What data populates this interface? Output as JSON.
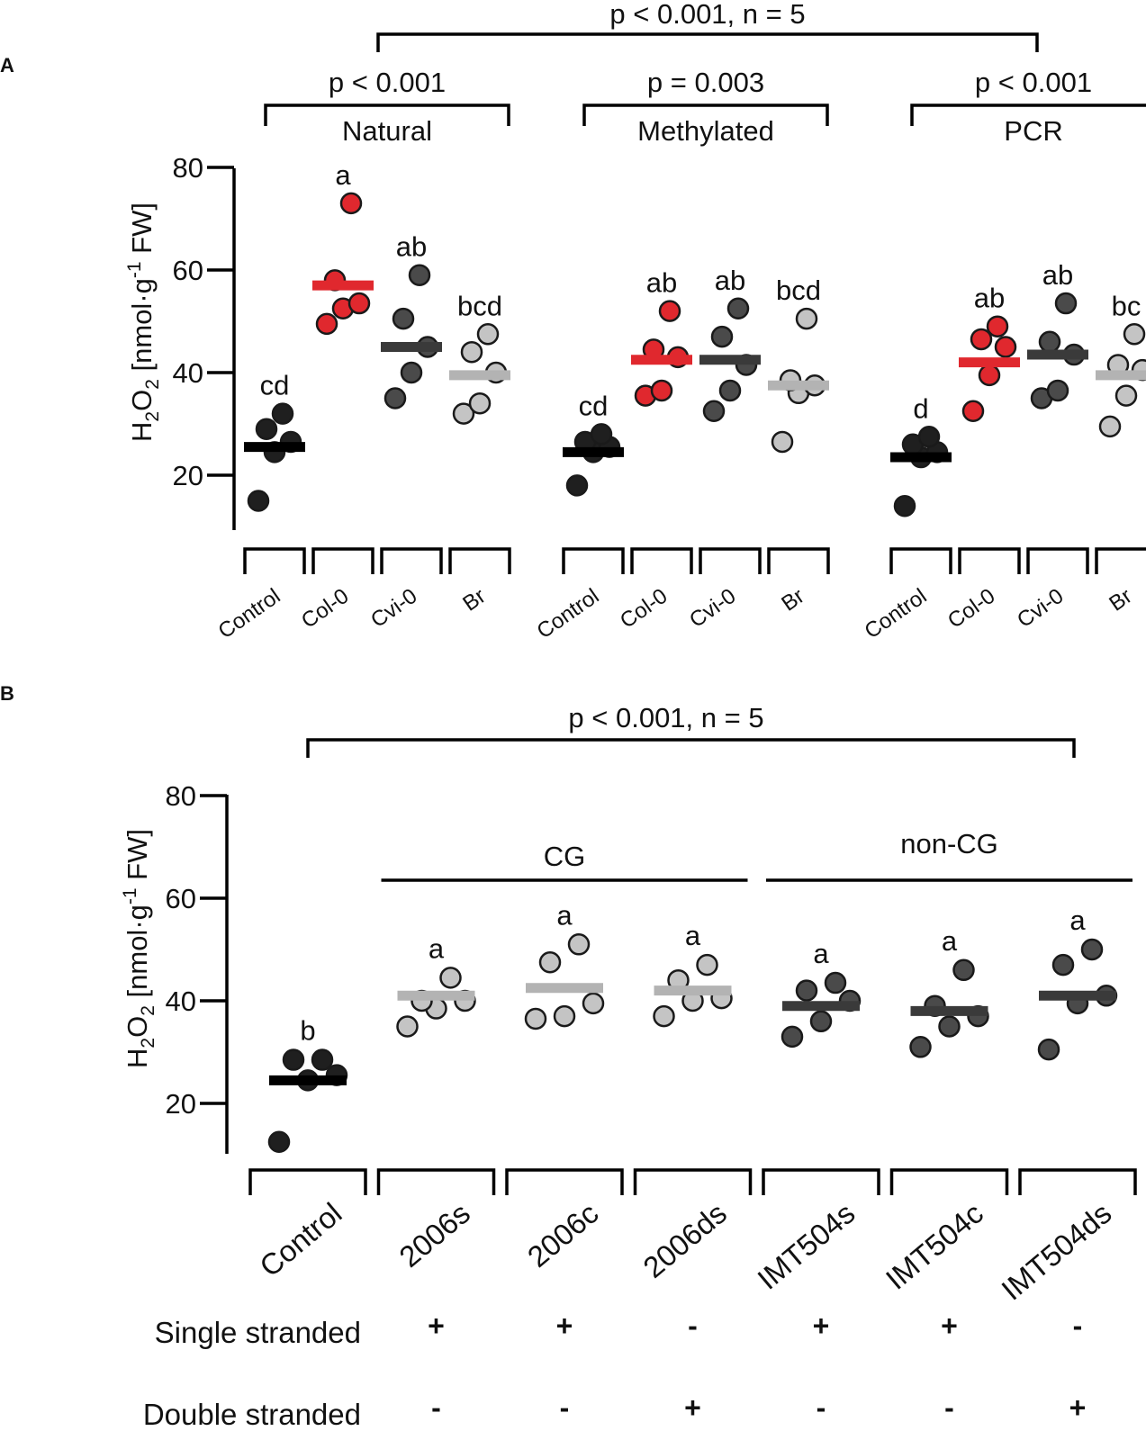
{
  "colors": {
    "black": "#1f1f1f",
    "red": "#e0282e",
    "dark_gray": "#4a4a4a",
    "light_gray": "#c4c4c4",
    "outline": "#1a1a1a"
  },
  "chart_data": [
    {
      "panel": "A",
      "type": "scatter",
      "ylabel": {
        "base": "H",
        "sub1": "2",
        "mid": "O",
        "sub2": "2",
        "rest": " [nmol·g",
        "sup": "-1",
        "end": " FW]"
      },
      "ylim": [
        10,
        80
      ],
      "yticks": [
        20,
        40,
        60,
        80
      ],
      "overall_stat": "p < 0.001, n = 5",
      "groups": [
        {
          "name": "Natural",
          "stat": "p < 0.001",
          "categories": [
            {
              "label": "Control",
              "color": "black",
              "letter": "cd",
              "mean": 25.5,
              "values": [
                15,
                24.5,
                26.5,
                29,
                32
              ]
            },
            {
              "label": "Col-0",
              "color": "red",
              "letter": "a",
              "mean": 57,
              "values": [
                49.5,
                52.5,
                53.5,
                58,
                73
              ]
            },
            {
              "label": "Cvi-0",
              "color": "dark_gray",
              "letter": "ab",
              "mean": 45,
              "values": [
                35,
                40,
                45,
                50.5,
                59
              ]
            },
            {
              "label": "Br",
              "color": "light_gray",
              "letter": "bcd",
              "mean": 39.5,
              "values": [
                32,
                34,
                40,
                44,
                47.5
              ]
            }
          ]
        },
        {
          "name": "Methylated",
          "stat": "p =  0.003",
          "categories": [
            {
              "label": "Control",
              "color": "black",
              "letter": "cd",
              "mean": 24.5,
              "values": [
                18,
                24.5,
                25.5,
                26.5,
                28
              ]
            },
            {
              "label": "Col-0",
              "color": "red",
              "letter": "ab",
              "mean": 42.5,
              "values": [
                35.5,
                36.5,
                43,
                44.5,
                52
              ]
            },
            {
              "label": "Cvi-0",
              "color": "dark_gray",
              "letter": "ab",
              "mean": 42.5,
              "values": [
                32.5,
                36.5,
                41.5,
                47,
                52.5
              ]
            },
            {
              "label": "Br",
              "color": "light_gray",
              "letter": "bcd",
              "mean": 37.5,
              "values": [
                26.5,
                36,
                37.5,
                38.5,
                50.5
              ]
            }
          ]
        },
        {
          "name": "PCR",
          "stat": "p < 0.001",
          "categories": [
            {
              "label": "Control",
              "color": "black",
              "letter": "d",
              "mean": 23.5,
              "values": [
                14,
                23.5,
                24.5,
                26,
                27.5
              ]
            },
            {
              "label": "Col-0",
              "color": "red",
              "letter": "ab",
              "mean": 42,
              "values": [
                32.5,
                39.5,
                45,
                46.5,
                49
              ]
            },
            {
              "label": "Cvi-0",
              "color": "dark_gray",
              "letter": "ab",
              "mean": 43.5,
              "values": [
                35,
                36.5,
                43.5,
                46,
                53.5
              ]
            },
            {
              "label": "Br",
              "color": "light_gray",
              "letter": "bc",
              "mean": 39.5,
              "values": [
                29.5,
                35.5,
                40.5,
                41.5,
                47.5
              ]
            }
          ]
        }
      ]
    },
    {
      "panel": "B",
      "type": "scatter",
      "ylabel": {
        "base": "H",
        "sub1": "2",
        "mid": "O",
        "sub2": "2",
        "rest": " [nmol·g",
        "sup": "-1",
        "end": " FW]"
      },
      "ylim": [
        10,
        80
      ],
      "yticks": [
        20,
        40,
        60,
        80
      ],
      "overall_stat": "p < 0.001, n = 5",
      "brackets": [
        {
          "name": "CG",
          "from": 1,
          "to": 3
        },
        {
          "name": "non-CG",
          "from": 4,
          "to": 6
        }
      ],
      "categories": [
        {
          "label": "Control",
          "color": "black",
          "letter": "b",
          "mean": 24.5,
          "values": [
            12.5,
            24.5,
            25.5,
            28.5,
            28.5
          ]
        },
        {
          "label": "2006s",
          "color": "light_gray",
          "letter": "a",
          "mean": 41,
          "values": [
            35,
            38.5,
            40,
            40,
            44.5
          ]
        },
        {
          "label": "2006c",
          "color": "light_gray",
          "letter": "a",
          "mean": 42.5,
          "values": [
            36.5,
            37,
            39.5,
            47.5,
            51
          ]
        },
        {
          "label": "2006ds",
          "color": "light_gray",
          "letter": "a",
          "mean": 42,
          "values": [
            37,
            40,
            40.5,
            44,
            47
          ]
        },
        {
          "label": "IMT504s",
          "color": "dark_gray",
          "letter": "a",
          "mean": 39,
          "values": [
            33,
            36,
            40,
            42,
            43.5
          ]
        },
        {
          "label": "IMT504c",
          "color": "dark_gray",
          "letter": "a",
          "mean": 38,
          "values": [
            31,
            35,
            37,
            39,
            46
          ]
        },
        {
          "label": "IMT504ds",
          "color": "dark_gray",
          "letter": "a",
          "mean": 41,
          "values": [
            30.5,
            39.5,
            41,
            47,
            50
          ]
        }
      ],
      "rows": [
        {
          "label": "Single stranded",
          "signs": [
            "+",
            "+",
            "-",
            "+",
            "+",
            "-"
          ]
        },
        {
          "label": "Double stranded",
          "signs": [
            "-",
            "-",
            "+",
            "-",
            "-",
            "+"
          ]
        }
      ]
    }
  ]
}
